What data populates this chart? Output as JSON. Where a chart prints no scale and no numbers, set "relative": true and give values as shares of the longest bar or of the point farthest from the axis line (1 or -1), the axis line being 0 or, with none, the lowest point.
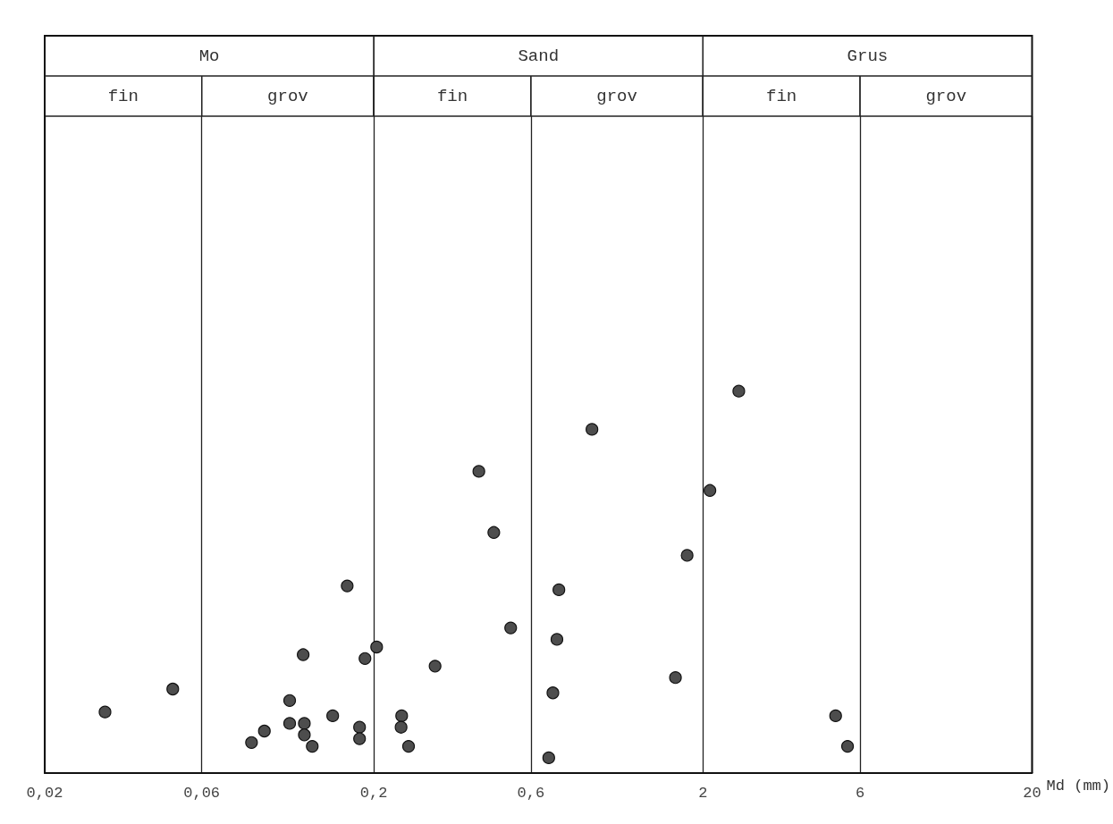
{
  "chart_data": {
    "type": "scatter",
    "relative": true,
    "xlabel": "Md (mm)",
    "log": "x",
    "marker": "circle",
    "xlim": [
      0.02,
      20
    ],
    "xticks": [
      {
        "value": 0.02,
        "label": "0,02"
      },
      {
        "value": 0.06,
        "label": "0,06"
      },
      {
        "value": 0.2,
        "label": "0,2"
      },
      {
        "value": 0.6,
        "label": "0,6"
      },
      2,
      6,
      20
    ],
    "grid": "x",
    "annotations": [
      "Mo",
      "Sand",
      "Grus",
      "fin",
      "grov",
      "fin",
      "grov",
      "fin",
      "grov"
    ],
    "series": [
      {
        "color": "#4d4d4d",
        "x": [
          0.0305,
          0.049,
          0.085,
          0.093,
          0.111,
          0.111,
          0.122,
          0.123,
          0.123,
          0.13,
          0.15,
          0.166,
          0.181,
          0.181,
          0.188,
          0.204,
          0.243,
          0.242,
          0.255,
          0.307,
          0.417,
          0.463,
          0.521,
          0.68,
          0.7,
          0.72,
          0.73,
          0.92,
          1.65,
          1.79,
          2.1,
          2.57,
          5.06,
          5.5
        ],
        "values": [
          0.16,
          0.22,
          0.08,
          0.11,
          0.19,
          0.13,
          0.31,
          0.13,
          0.1,
          0.07,
          0.15,
          0.49,
          0.12,
          0.09,
          0.3,
          0.33,
          0.15,
          0.12,
          0.07,
          0.28,
          0.79,
          0.63,
          0.38,
          0.04,
          0.21,
          0.35,
          0.48,
          0.9,
          0.25,
          0.57,
          0.74,
          1,
          0.15,
          0.07
        ]
      }
    ]
  }
}
